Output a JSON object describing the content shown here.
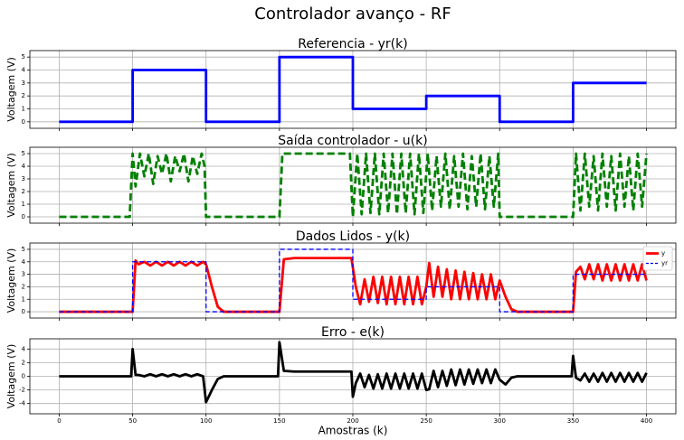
{
  "title": "Controlador avanço - RF",
  "chart_data": [
    {
      "type": "line",
      "title": "Referencia - yr(k)",
      "ylabel": "Voltagem (V)",
      "xlim": [
        -20,
        420
      ],
      "ylim": [
        -0.5,
        5.5
      ],
      "yticks": [
        0,
        1,
        2,
        3,
        4,
        5
      ],
      "grid": true,
      "series": [
        {
          "color": "#0000ff",
          "linestyle": "solid",
          "x": [
            0,
            50,
            50,
            100,
            100,
            150,
            150,
            200,
            200,
            250,
            250,
            300,
            300,
            350,
            350,
            400
          ],
          "values": [
            0,
            0,
            4,
            4,
            0,
            0,
            5,
            5,
            1,
            1,
            2,
            2,
            0,
            0,
            3,
            3
          ]
        }
      ]
    },
    {
      "type": "line",
      "title": "Saída controlador - u(k)",
      "ylabel": "Voltagem (V)",
      "xlim": [
        -20,
        420
      ],
      "ylim": [
        -0.5,
        5.5
      ],
      "yticks": [
        0,
        1,
        2,
        3,
        4,
        5
      ],
      "grid": true,
      "series": [
        {
          "color": "#008000",
          "linestyle": "dashed",
          "x": [
            0,
            48,
            50,
            52,
            55,
            58,
            61,
            64,
            67,
            70,
            73,
            76,
            79,
            82,
            85,
            88,
            91,
            94,
            97,
            99,
            100,
            150,
            152,
            198,
            200,
            203,
            206,
            209,
            212,
            215,
            218,
            221,
            224,
            227,
            230,
            233,
            236,
            239,
            242,
            245,
            248,
            251,
            254,
            257,
            260,
            263,
            266,
            269,
            272,
            275,
            278,
            281,
            284,
            287,
            290,
            293,
            296,
            299,
            300,
            350,
            352,
            355,
            358,
            361,
            364,
            367,
            370,
            373,
            376,
            379,
            382,
            385,
            388,
            391,
            394,
            397,
            400
          ],
          "values": [
            0,
            0,
            5,
            2.4,
            5,
            3.2,
            5,
            2.6,
            4.8,
            3.4,
            5,
            2.8,
            4.8,
            3.6,
            5,
            2.8,
            4.8,
            3.4,
            5,
            4,
            0,
            0,
            5,
            5,
            0,
            5,
            0.2,
            5,
            0.3,
            5,
            0.2,
            5,
            0.3,
            5,
            0.2,
            5,
            0.3,
            5,
            0.2,
            5,
            0.3,
            5,
            0.5,
            4.8,
            0.8,
            5,
            0.6,
            4.8,
            0.8,
            5,
            0.6,
            4.8,
            0.8,
            5,
            0.6,
            4.8,
            0.8,
            5,
            0,
            0,
            5,
            0.5,
            5,
            0.8,
            4.8,
            0.5,
            5,
            0.8,
            4.8,
            0.5,
            5,
            0.8,
            4.8,
            0.5,
            5,
            0.8,
            5
          ]
        }
      ]
    },
    {
      "type": "line",
      "title": "Dados Lidos - y(k)",
      "ylabel": "Voltagem (V)",
      "xlim": [
        -20,
        420
      ],
      "ylim": [
        -0.5,
        5.5
      ],
      "yticks": [
        0,
        1,
        2,
        3,
        4,
        5
      ],
      "grid": true,
      "legend": "upper right",
      "series": [
        {
          "name": "y",
          "color": "#ff0000",
          "linestyle": "solid",
          "x": [
            0,
            50,
            52,
            54,
            58,
            62,
            66,
            70,
            74,
            78,
            82,
            86,
            90,
            94,
            98,
            100,
            104,
            108,
            112,
            150,
            153,
            160,
            199,
            202,
            205,
            208,
            211,
            214,
            217,
            220,
            223,
            226,
            229,
            232,
            235,
            238,
            241,
            244,
            247,
            250,
            252,
            255,
            258,
            261,
            264,
            267,
            270,
            273,
            276,
            279,
            282,
            285,
            288,
            291,
            294,
            297,
            300,
            304,
            308,
            312,
            350,
            352,
            355,
            358,
            361,
            364,
            367,
            370,
            373,
            376,
            379,
            382,
            385,
            388,
            391,
            394,
            397,
            400
          ],
          "values": [
            0,
            0,
            4.1,
            3.8,
            4.0,
            3.7,
            4.0,
            3.7,
            4.0,
            3.7,
            4.0,
            3.7,
            4.0,
            3.7,
            4.0,
            3.8,
            2.0,
            0.4,
            0,
            0,
            4.2,
            4.3,
            4.3,
            2.0,
            0.6,
            2.6,
            0.8,
            2.8,
            0.7,
            2.8,
            0.6,
            2.8,
            0.6,
            2.8,
            0.6,
            2.8,
            0.6,
            2.8,
            0.6,
            2.0,
            3.9,
            1.2,
            3.6,
            1.2,
            3.4,
            1.0,
            3.3,
            1.0,
            3.2,
            1.0,
            3.1,
            1.0,
            3.0,
            1.0,
            3.0,
            1.0,
            2.5,
            1.2,
            0.2,
            0,
            0,
            3.2,
            3.6,
            2.6,
            3.8,
            2.6,
            3.8,
            2.5,
            3.8,
            2.5,
            3.8,
            2.5,
            3.8,
            2.5,
            3.8,
            2.5,
            3.8,
            2.5
          ]
        },
        {
          "name": "yr",
          "color": "#0000ff",
          "linestyle": "dashed",
          "x": [
            0,
            50,
            50,
            100,
            100,
            150,
            150,
            200,
            200,
            250,
            250,
            300,
            300,
            350,
            350,
            400
          ],
          "values": [
            0,
            0,
            4,
            4,
            0,
            0,
            5,
            5,
            1,
            1,
            2,
            2,
            0,
            0,
            3,
            3
          ]
        }
      ]
    },
    {
      "type": "line",
      "title": "Erro - e(k)",
      "ylabel": "Voltagem (V)",
      "xlabel": "Amostras (k)",
      "xlim": [
        -20,
        420
      ],
      "ylim": [
        -5.5,
        5.5
      ],
      "yticks": [
        -4,
        -2,
        0,
        2,
        4
      ],
      "xticks": [
        0,
        50,
        100,
        150,
        200,
        250,
        300,
        350,
        400
      ],
      "grid": true,
      "series": [
        {
          "color": "#000000",
          "linestyle": "solid",
          "x": [
            0,
            49,
            50,
            52,
            54,
            58,
            62,
            66,
            70,
            74,
            78,
            82,
            86,
            90,
            94,
            98,
            100,
            104,
            108,
            112,
            149,
            150,
            153,
            160,
            199,
            200,
            202,
            205,
            208,
            211,
            214,
            217,
            220,
            223,
            226,
            229,
            232,
            235,
            238,
            241,
            244,
            247,
            250,
            252,
            255,
            258,
            261,
            264,
            267,
            270,
            273,
            276,
            279,
            282,
            285,
            288,
            291,
            294,
            297,
            300,
            304,
            308,
            312,
            349,
            350,
            352,
            355,
            358,
            361,
            364,
            367,
            370,
            373,
            376,
            379,
            382,
            385,
            388,
            391,
            394,
            397,
            400
          ],
          "values": [
            0,
            0,
            4.0,
            0.2,
            0.2,
            0,
            0.3,
            0,
            0.3,
            0,
            0.3,
            0,
            0.3,
            0,
            0.3,
            0,
            -3.8,
            -2.0,
            -0.4,
            0,
            0,
            5.0,
            0.8,
            0.7,
            0.7,
            -3.0,
            -1.0,
            0.4,
            -1.6,
            0.2,
            -1.8,
            0.3,
            -1.8,
            0.4,
            -1.8,
            0.4,
            -1.8,
            0.4,
            -1.8,
            0.4,
            -1.8,
            0.4,
            -2.0,
            -1.9,
            0.8,
            -1.6,
            0.8,
            -1.4,
            1.0,
            -1.3,
            1.0,
            -1.2,
            1.0,
            -1.1,
            1.0,
            -1.0,
            1.0,
            -1.0,
            1.0,
            -0.5,
            -1.2,
            -0.2,
            0,
            0,
            3.0,
            -0.2,
            -0.6,
            0.4,
            -0.8,
            0.4,
            -0.8,
            0.5,
            -0.8,
            0.5,
            -0.8,
            0.5,
            -0.8,
            0.5,
            -0.8,
            0.5,
            -0.8,
            0.5
          ]
        }
      ]
    }
  ]
}
